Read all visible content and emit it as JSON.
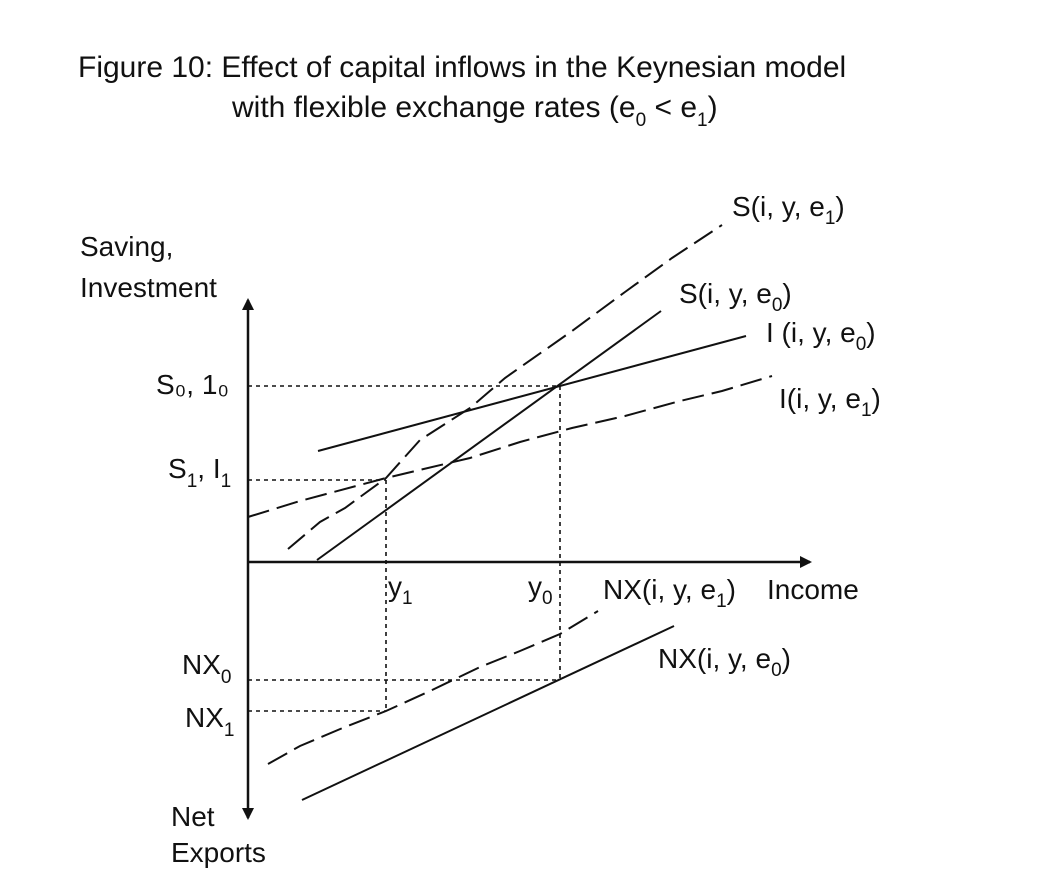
{
  "figure": {
    "title_line1": "Figure 10: Effect of capital inflows in the Keynesian model",
    "title_line2_text": "with flexible exchange rates (e",
    "title_line2_sub0": "0",
    "title_line2_mid": " < e",
    "title_line2_sub1": "1",
    "title_line2_end": ")"
  },
  "axes": {
    "y_upper_label_line1": "Saving,",
    "y_upper_label_line2": "Investment",
    "y_lower_label_line1": "Net",
    "y_lower_label_line2": "Exports",
    "x_label": "Income"
  },
  "levels": {
    "s0_label": "S₀, 1₀",
    "s1_main": "S",
    "s1_sub": "1",
    "s1_mid": ", I",
    "s1_sub2": "1",
    "nx0_main": "NX",
    "nx0_sub": "0",
    "nx1_main": "NX",
    "nx1_sub": "1"
  },
  "income_ticks": {
    "y1_main": "y",
    "y1_sub": "1",
    "y0_main": "y",
    "y0_sub": "0"
  },
  "curves": {
    "s_e1": {
      "pre": "S(i, y,  e",
      "sub": "1",
      "post": ")"
    },
    "s_e0": {
      "pre": "S(i, y, e",
      "sub": "0",
      "post": ")"
    },
    "i_e0": {
      "pre": "I (i, y, e",
      "sub": "0",
      "post": ")"
    },
    "i_e1": {
      "pre": "I(i, y,  e",
      "sub": "1",
      "post": ")"
    },
    "nx_e1": {
      "pre": "NX(i, y, e",
      "sub": "1",
      "post": ")"
    },
    "nx_e0": {
      "pre": "NX(i, y, e",
      "sub": "0",
      "post": ")"
    }
  }
}
